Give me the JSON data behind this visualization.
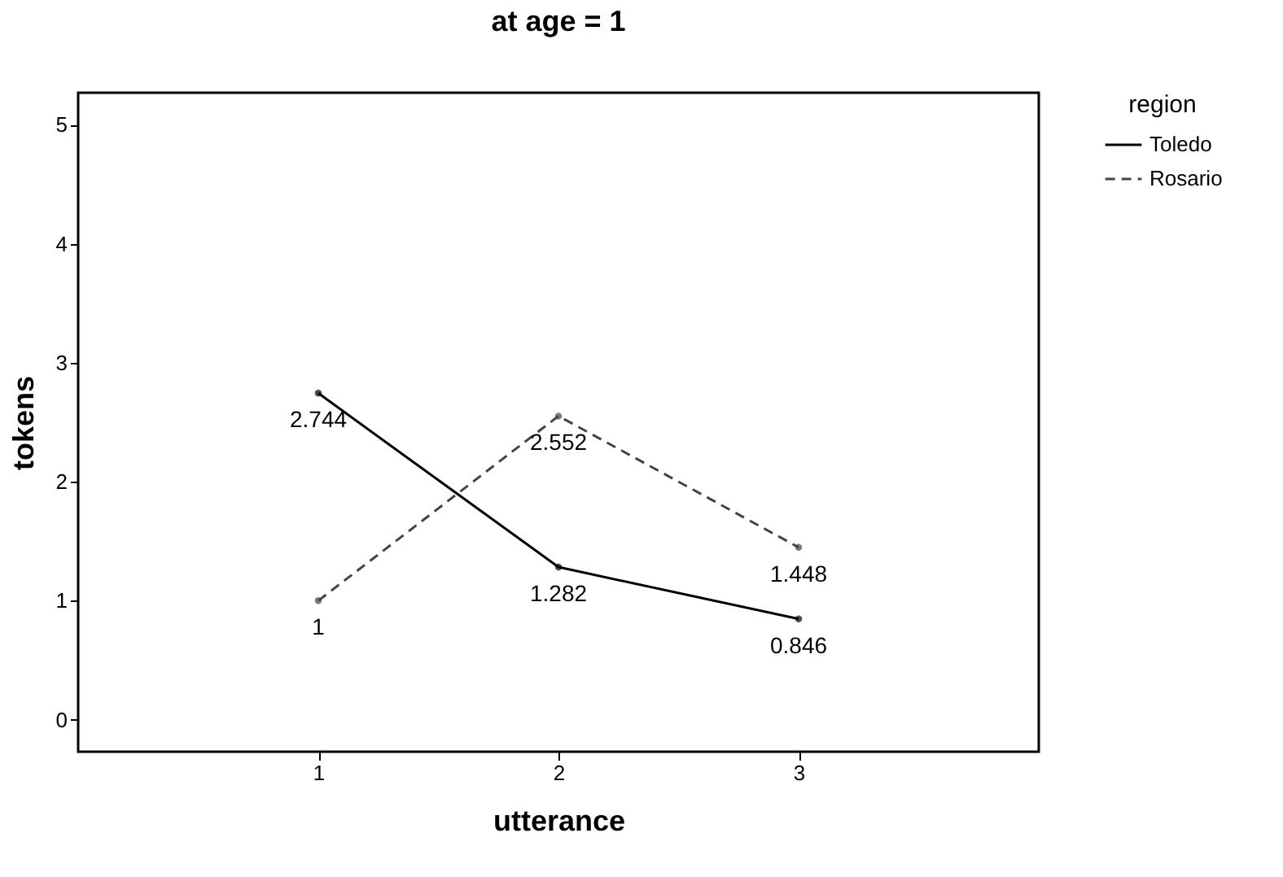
{
  "chart_data": {
    "type": "line",
    "title": "at age = 1",
    "xlabel": "utterance",
    "ylabel": "tokens",
    "legend_title": "region",
    "categories": [
      "1",
      "2",
      "3"
    ],
    "series": [
      {
        "name": "Toledo",
        "color": "#000000",
        "values": [
          2.744,
          1.282,
          0.846
        ],
        "line_style": "solid"
      },
      {
        "name": "Rosario",
        "color": "#444444",
        "values": [
          1,
          2.552,
          1.448
        ],
        "line_style": "dashed"
      }
    ],
    "ylim": [
      -0.27,
      5.27
    ],
    "yticks": [
      {
        "value": 0,
        "label": "0"
      },
      {
        "value": 1,
        "label": "1"
      },
      {
        "value": 2,
        "label": "2"
      },
      {
        "value": 3,
        "label": "3"
      },
      {
        "value": 4,
        "label": "4"
      },
      {
        "value": 5,
        "label": "5"
      }
    ],
    "grid": false,
    "legend": "top right",
    "marker": "circle",
    "data_labels": true
  }
}
